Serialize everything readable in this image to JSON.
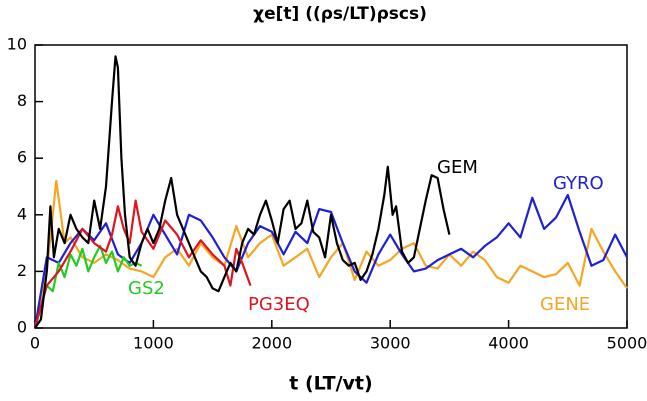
{
  "chart_data": {
    "type": "line",
    "title": "χe[t]  ((ρs/LT)ρscs)",
    "x_label": "t  (LT/vt)",
    "xlim": [
      0,
      5000
    ],
    "xticks": [
      0,
      1000,
      2000,
      3000,
      4000,
      5000
    ],
    "ylim": [
      0,
      10
    ],
    "yticks": [
      0,
      2,
      4,
      6,
      8,
      10
    ],
    "series": [
      {
        "name": "GENE",
        "color": "#f5a623",
        "x": [
          0,
          100,
          180,
          250,
          300,
          400,
          500,
          600,
          700,
          800,
          900,
          1000,
          1100,
          1200,
          1300,
          1400,
          1500,
          1600,
          1700,
          1800,
          1900,
          2000,
          2100,
          2200,
          2300,
          2400,
          2500,
          2600,
          2700,
          2800,
          2900,
          3000,
          3100,
          3200,
          3300,
          3400,
          3500,
          3600,
          3700,
          3800,
          3900,
          4000,
          4100,
          4200,
          4300,
          4400,
          4500,
          4600,
          4700,
          4800,
          4900,
          5000
        ],
        "values": [
          0,
          2,
          5.2,
          3,
          3.2,
          2.5,
          2.3,
          2.6,
          2.4,
          2.1,
          2,
          1.8,
          2.5,
          2.8,
          2.2,
          3,
          2.5,
          2.2,
          3.6,
          2.5,
          3,
          3.3,
          2.2,
          2.5,
          2.8,
          1.8,
          2.5,
          3,
          1.7,
          2.7,
          2.2,
          2.4,
          2.8,
          3,
          2.2,
          2.1,
          2.6,
          2.2,
          2.7,
          2.4,
          1.8,
          1.6,
          2.2,
          2,
          1.8,
          1.9,
          2.3,
          1.5,
          3.5,
          2.7,
          2,
          1.4
        ]
      },
      {
        "name": "GYRO",
        "color": "#1f1fd6",
        "x": [
          0,
          100,
          200,
          300,
          400,
          500,
          600,
          700,
          800,
          900,
          1000,
          1100,
          1200,
          1300,
          1400,
          1500,
          1600,
          1700,
          1800,
          1900,
          2000,
          2100,
          2200,
          2300,
          2400,
          2500,
          2600,
          2700,
          2800,
          2900,
          3000,
          3100,
          3200,
          3300,
          3400,
          3500,
          3600,
          3700,
          3800,
          3900,
          4000,
          4100,
          4200,
          4300,
          4400,
          4500,
          4600,
          4700,
          4800,
          4900,
          5000
        ],
        "values": [
          0,
          2.5,
          2.3,
          3,
          3.5,
          3.1,
          3.7,
          2.6,
          2.3,
          3,
          4,
          3.3,
          2.6,
          4,
          3.8,
          3.2,
          2.5,
          2,
          3,
          3.6,
          3.4,
          2.6,
          3.4,
          3,
          4.2,
          4.1,
          3,
          2,
          1.6,
          2.6,
          3.3,
          2.6,
          2,
          2.1,
          2.4,
          2.6,
          2.8,
          2.5,
          2.9,
          3.2,
          3.7,
          3.2,
          4.6,
          3.5,
          3.9,
          4.7,
          3.4,
          2.2,
          2.4,
          3.3,
          2.5
        ]
      },
      {
        "name": "GS2",
        "color": "#22cc22",
        "x": [
          0,
          100,
          150,
          200,
          250,
          300,
          350,
          400,
          450,
          500,
          550,
          600,
          650,
          700,
          750,
          800,
          850,
          900
        ],
        "values": [
          0,
          1.5,
          1.3,
          2.3,
          1.8,
          2.6,
          2.2,
          2.8,
          2,
          2.5,
          2.9,
          2.3,
          2.7,
          2,
          2.5,
          2.2,
          2.3,
          2.2
        ]
      },
      {
        "name": "PG3EQ",
        "color": "#e0141e",
        "x": [
          0,
          100,
          200,
          300,
          400,
          500,
          600,
          650,
          700,
          750,
          800,
          850,
          900,
          1000,
          1100,
          1200,
          1300,
          1400,
          1500,
          1600,
          1650,
          1700,
          1750,
          1820
        ],
        "values": [
          0,
          1.5,
          2,
          2.7,
          3.5,
          3,
          2.7,
          3.3,
          4.3,
          3.5,
          3,
          4.5,
          3.4,
          2.8,
          3.8,
          3.3,
          2.5,
          3.1,
          2.6,
          2.2,
          1.5,
          2.8,
          2.3,
          1.5
        ]
      },
      {
        "name": "GEM",
        "color": "#000000",
        "x": [
          0,
          50,
          100,
          130,
          160,
          200,
          250,
          300,
          350,
          400,
          450,
          500,
          550,
          600,
          650,
          680,
          700,
          730,
          760,
          800,
          850,
          900,
          950,
          1000,
          1050,
          1100,
          1150,
          1200,
          1250,
          1300,
          1350,
          1400,
          1450,
          1500,
          1550,
          1600,
          1650,
          1700,
          1750,
          1800,
          1850,
          1900,
          1950,
          2000,
          2050,
          2100,
          2150,
          2200,
          2250,
          2300,
          2350,
          2400,
          2450,
          2500,
          2550,
          2600,
          2650,
          2700,
          2750,
          2800,
          2850,
          2900,
          2950,
          2980,
          3020,
          3050,
          3100,
          3150,
          3200,
          3250,
          3300,
          3350,
          3400,
          3450,
          3500
        ],
        "values": [
          0,
          0.3,
          2,
          4.3,
          2.5,
          3.5,
          3,
          4,
          3.5,
          3.2,
          3,
          4.5,
          3.5,
          5,
          8,
          9.6,
          9.2,
          6,
          4,
          2.5,
          2.2,
          3,
          3.5,
          3,
          3.5,
          4.5,
          5.3,
          4,
          3.5,
          3,
          2.5,
          2,
          1.8,
          1.4,
          1.3,
          1.8,
          2.3,
          2,
          3,
          3.5,
          3.3,
          4,
          4.5,
          3.8,
          3,
          4.2,
          4.5,
          3.5,
          3.7,
          4.5,
          3.4,
          3.2,
          2.5,
          4,
          3,
          2.4,
          2.2,
          2.3,
          1.7,
          2,
          2.6,
          3.5,
          4.7,
          5.7,
          4,
          4.3,
          2.7,
          2.3,
          2.5,
          3.5,
          4.5,
          5.4,
          5.3,
          4.2,
          3.3
        ]
      }
    ]
  }
}
